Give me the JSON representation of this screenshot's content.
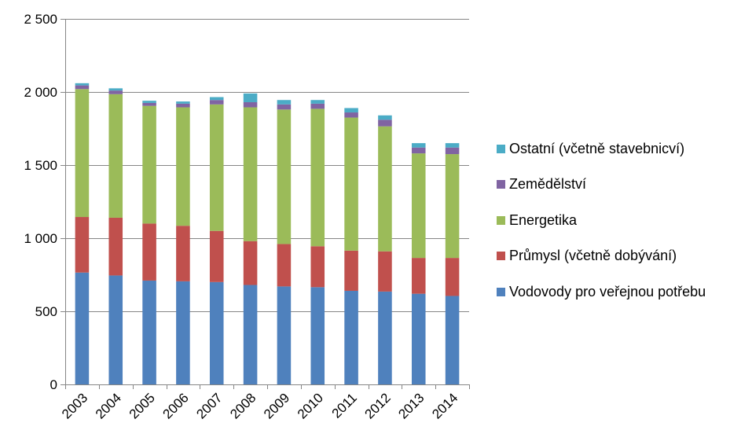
{
  "chart_data": {
    "type": "bar",
    "stacked": true,
    "categories": [
      "2003",
      "2004",
      "2005",
      "2006",
      "2007",
      "2008",
      "2009",
      "2010",
      "2011",
      "2012",
      "2013",
      "2014"
    ],
    "series": [
      {
        "name": "Vodovody pro veřejnou potřebu",
        "color": "#4f81bd",
        "values": [
          765,
          745,
          710,
          705,
          700,
          680,
          670,
          665,
          640,
          635,
          620,
          605
        ]
      },
      {
        "name": "Průmysl (včetně dobývání)",
        "color": "#c0504d",
        "values": [
          380,
          395,
          390,
          380,
          350,
          300,
          290,
          280,
          275,
          275,
          245,
          260
        ]
      },
      {
        "name": "Energetika",
        "color": "#9bbb59",
        "values": [
          875,
          845,
          805,
          810,
          865,
          915,
          920,
          940,
          910,
          855,
          715,
          710
        ]
      },
      {
        "name": "Zemědělství",
        "color": "#8064a2",
        "values": [
          25,
          25,
          20,
          25,
          30,
          35,
          35,
          35,
          35,
          45,
          40,
          45
        ]
      },
      {
        "name": "Ostatní (včetně stavebnicví)",
        "color": "#4bacc6",
        "values": [
          15,
          15,
          15,
          15,
          20,
          60,
          30,
          25,
          30,
          30,
          30,
          30
        ]
      }
    ],
    "ylim": [
      0,
      2500
    ],
    "yticks": [
      "0",
      "500",
      "1 000",
      "1 500",
      "2 000",
      "2 500"
    ],
    "ytick_values": [
      0,
      500,
      1000,
      1500,
      2000,
      2500
    ],
    "grid": true,
    "legend_position": "right",
    "legend_order": [
      4,
      3,
      2,
      1,
      0
    ]
  }
}
